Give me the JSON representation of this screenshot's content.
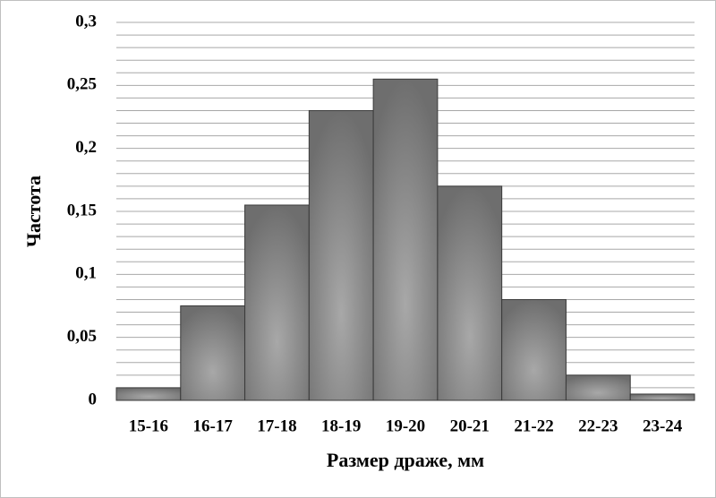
{
  "chart_data": {
    "type": "bar",
    "x_label": "Размер драже, мм",
    "y_label": "Частота",
    "categories": [
      "15-16",
      "16-17",
      "17-18",
      "18-19",
      "19-20",
      "20-21",
      "21-22",
      "22-23",
      "23-24"
    ],
    "values": [
      0.01,
      0.075,
      0.155,
      0.23,
      0.255,
      0.17,
      0.08,
      0.02,
      0.005
    ],
    "color": "#6e6e6e",
    "ylim": [
      0,
      0.3
    ],
    "yticks": [
      0,
      {
        "value": 0.05,
        "label": "0,05"
      },
      {
        "value": 0.1,
        "label": "0,1"
      },
      {
        "value": 0.15,
        "label": "0,15"
      },
      {
        "value": 0.2,
        "label": "0,2"
      },
      {
        "value": 0.25,
        "label": "0,25"
      },
      {
        "value": 0.3,
        "label": "0,3"
      }
    ],
    "grid": true
  }
}
